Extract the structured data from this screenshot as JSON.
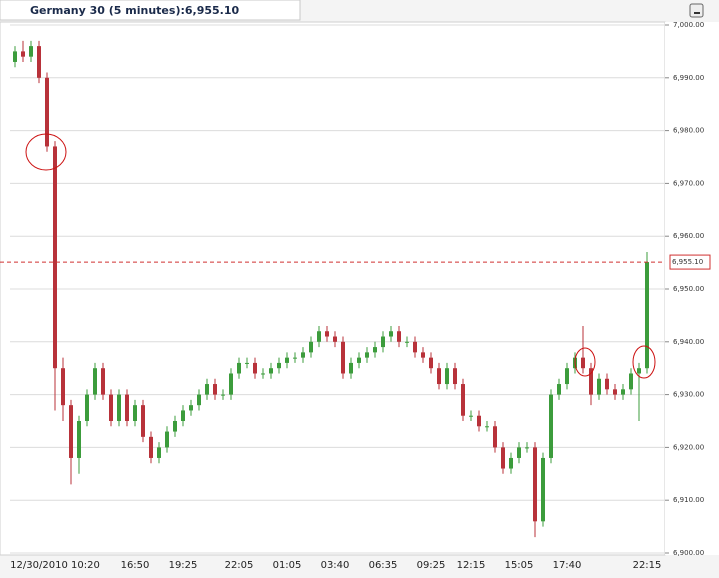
{
  "chart_data": {
    "type": "candlestick",
    "title": "Germany 30 (5 minutes):6,955.10",
    "categories": [
      null,
      null,
      null,
      null,
      null,
      "12/30/2010 10:20",
      null,
      null,
      null,
      null,
      null,
      null,
      null,
      null,
      null,
      "16:50",
      null,
      null,
      null,
      null,
      null,
      "19:25",
      null,
      null,
      null,
      null,
      null,
      null,
      "22:05",
      null,
      null,
      null,
      null,
      null,
      "01:05",
      null,
      null,
      null,
      null,
      null,
      "03:40",
      null,
      null,
      null,
      null,
      null,
      "06:35",
      null,
      null,
      null,
      null,
      null,
      "09:25",
      null,
      null,
      null,
      null,
      "12:15",
      null,
      null,
      null,
      null,
      null,
      "15:05",
      null,
      null,
      null,
      null,
      null,
      "17:40",
      null,
      null,
      null,
      null,
      null,
      null,
      null,
      null,
      null,
      "22:15"
    ],
    "open": [
      6993,
      6995,
      6994,
      6996,
      6990,
      6977,
      6935,
      6928,
      6918,
      6925,
      6930,
      6935,
      6930,
      6925,
      6930,
      6925,
      6928,
      6922,
      6918,
      6920,
      6923,
      6925,
      6927,
      6928,
      6930,
      6932,
      6930,
      6930,
      6934,
      6936,
      6936,
      6934,
      6934,
      6935,
      6936,
      6937,
      6937,
      6938,
      6940,
      6942,
      6941,
      6940,
      6934,
      6936,
      6937,
      6938,
      6939,
      6941,
      6942,
      6940,
      6940,
      6938,
      6937,
      6935,
      6932,
      6935,
      6932,
      6926,
      6926,
      6924,
      6924,
      6920,
      6916,
      6918,
      6920,
      6920,
      6906,
      6918,
      6930,
      6932,
      6935,
      6937,
      6935,
      6930,
      6933,
      6931,
      6930,
      6931,
      6934,
      6935
    ],
    "high": [
      6996,
      6997,
      6997,
      6997,
      6991,
      6978,
      6937,
      6929,
      6926,
      6931,
      6936,
      6936,
      6931,
      6931,
      6931,
      6929,
      6929,
      6923,
      6921,
      6924,
      6926,
      6928,
      6929,
      6931,
      6933,
      6933,
      6931,
      6935,
      6937,
      6937,
      6937,
      6935,
      6936,
      6937,
      6938,
      6938,
      6939,
      6941,
      6943,
      6943,
      6942,
      6941,
      6937,
      6938,
      6939,
      6940,
      6942,
      6943,
      6943,
      6941,
      6941,
      6939,
      6938,
      6936,
      6936,
      6936,
      6933,
      6927,
      6927,
      6925,
      6925,
      6921,
      6919,
      6921,
      6921,
      6921,
      6919,
      6931,
      6933,
      6936,
      6938,
      6943,
      6936,
      6934,
      6934,
      6932,
      6932,
      6935,
      6936,
      6957
    ],
    "low": [
      6992,
      6993,
      6993,
      6989,
      6976,
      6927,
      6925,
      6913,
      6915,
      6924,
      6929,
      6929,
      6924,
      6924,
      6924,
      6924,
      6921,
      6917,
      6917,
      6919,
      6922,
      6924,
      6926,
      6927,
      6929,
      6929,
      6929,
      6929,
      6933,
      6935,
      6933,
      6933,
      6933,
      6934,
      6935,
      6936,
      6936,
      6937,
      6939,
      6940,
      6939,
      6933,
      6933,
      6935,
      6936,
      6937,
      6938,
      6940,
      6939,
      6939,
      6937,
      6936,
      6934,
      6931,
      6931,
      6931,
      6925,
      6925,
      6923,
      6923,
      6919,
      6915,
      6915,
      6917,
      6919,
      6903,
      6905,
      6917,
      6929,
      6931,
      6934,
      6934,
      6928,
      6929,
      6930,
      6929,
      6929,
      6930,
      6925,
      6934
    ],
    "close": [
      6995,
      6994,
      6996,
      6990,
      6977,
      6935,
      6928,
      6918,
      6925,
      6930,
      6935,
      6930,
      6925,
      6930,
      6925,
      6928,
      6922,
      6918,
      6920,
      6923,
      6925,
      6927,
      6928,
      6930,
      6932,
      6930,
      6930,
      6934,
      6936,
      6936,
      6934,
      6934,
      6935,
      6936,
      6937,
      6937,
      6938,
      6940,
      6942,
      6941,
      6940,
      6934,
      6936,
      6937,
      6938,
      6939,
      6941,
      6942,
      6940,
      6940,
      6938,
      6937,
      6935,
      6932,
      6935,
      6932,
      6926,
      6926,
      6924,
      6924,
      6920,
      6916,
      6918,
      6920,
      6920,
      6906,
      6918,
      6930,
      6932,
      6935,
      6937,
      6935,
      6930,
      6933,
      6931,
      6930,
      6931,
      6934,
      6935,
      6955.1
    ],
    "up_color": "#3c9c3c",
    "down_color": "#b8323a",
    "ylim": [
      6900,
      7000
    ],
    "yticks": [
      {
        "value": 6900,
        "label": "6,900.00"
      },
      {
        "value": 6910,
        "label": "6,910.00"
      },
      {
        "value": 6920,
        "label": "6,920.00"
      },
      {
        "value": 6930,
        "label": "6,930.00"
      },
      {
        "value": 6940,
        "label": "6,940.00"
      },
      {
        "value": 6950,
        "label": "6,950.00"
      },
      {
        "value": 6960,
        "label": "6,960.00"
      },
      {
        "value": 6970,
        "label": "6,970.00"
      },
      {
        "value": 6980,
        "label": "6,980.00"
      },
      {
        "value": 6990,
        "label": "6,990.00"
      },
      {
        "value": 7000,
        "label": "7,000.00"
      }
    ],
    "grid": true,
    "price_line": {
      "value": 6955.1,
      "label": "6,955.10",
      "color": "#d03030"
    }
  }
}
